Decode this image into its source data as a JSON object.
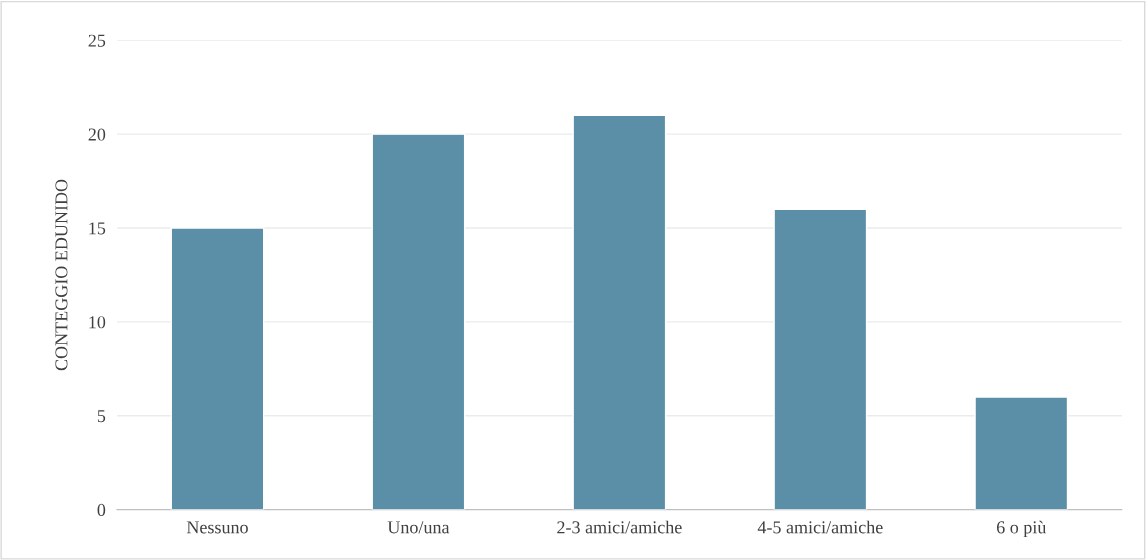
{
  "chart_data": {
    "type": "bar",
    "ylabel": "CONTEGGIO EDUNIDO",
    "categories": [
      "Nessuno",
      "Uno/una",
      "2-3 amici/amiche",
      "4-5 amici/amiche",
      "6 o più"
    ],
    "values": [
      15,
      20,
      21,
      16,
      6
    ],
    "color": "#5b8fa7",
    "ylim": [
      0,
      25
    ],
    "yticks": [
      0,
      5,
      10,
      15,
      20,
      25
    ],
    "grid": "y"
  }
}
